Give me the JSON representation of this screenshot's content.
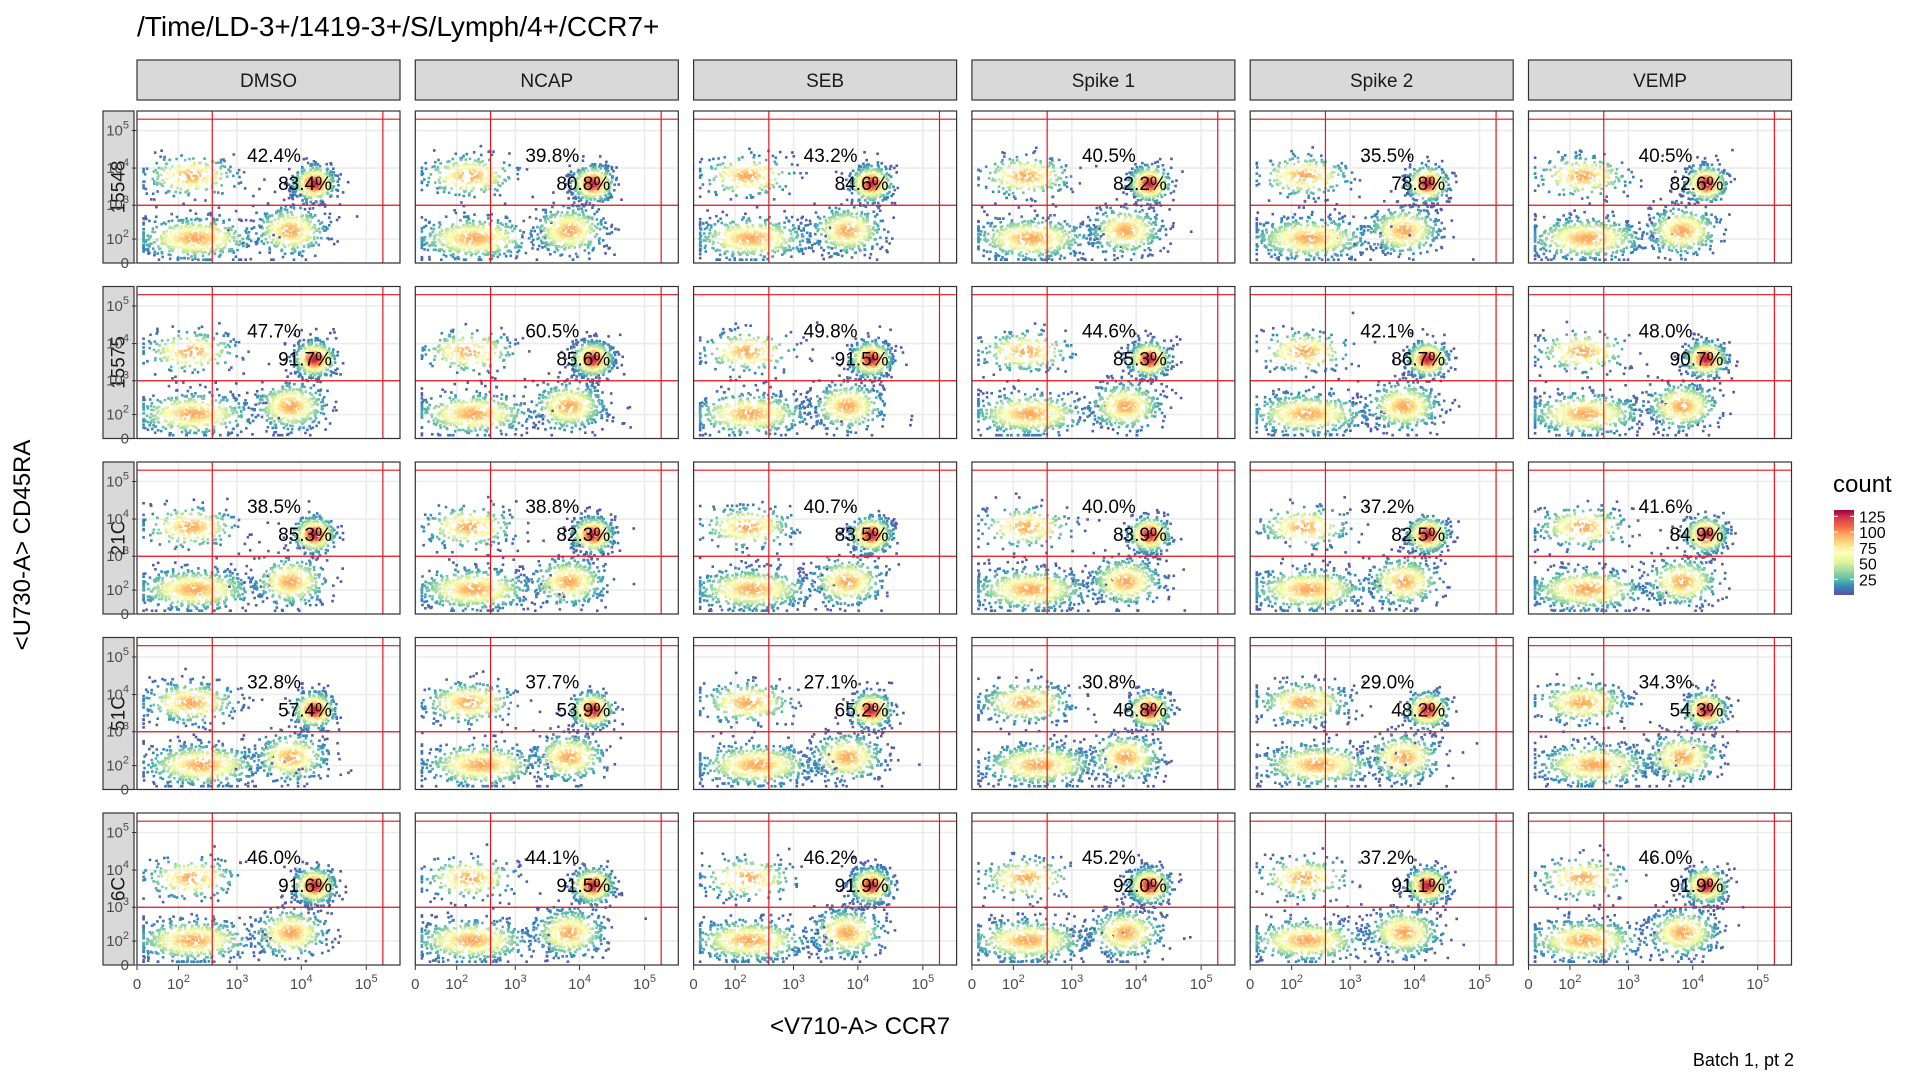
{
  "chart_data": {
    "type": "heatmap",
    "subtype": "faceted 2D density (flow cytometry)",
    "title": "/Time/LD-3+/1419-3+/S/Lymph/4+/CCR7+",
    "xlabel": "<V710-A> CCR7",
    "ylabel": "<U730-A> CD45RA",
    "caption": "Batch 1, pt 2",
    "x_ticks": [
      {
        "sup": null,
        "label": "0",
        "value": 0
      },
      {
        "sup": "2",
        "label": "10",
        "value": 100
      },
      {
        "sup": "3",
        "label": "10",
        "value": 1000
      },
      {
        "sup": "4",
        "label": "10",
        "value": 10000
      },
      {
        "sup": "5",
        "label": "10",
        "value": 100000
      }
    ],
    "y_ticks": [
      {
        "sup": null,
        "label": "0",
        "value": 0
      },
      {
        "sup": "2",
        "label": "10",
        "value": 100
      },
      {
        "sup": "3",
        "label": "10",
        "value": 1000
      },
      {
        "sup": "4",
        "label": "10",
        "value": 10000
      },
      {
        "sup": "5",
        "label": "10",
        "value": 100000
      }
    ],
    "columns": [
      "DMSO",
      "NCAP",
      "SEB",
      "Spike 1",
      "Spike 2",
      "VEMP"
    ],
    "rows": [
      "15548",
      "15575",
      "21C",
      "51C",
      "6C"
    ],
    "gates": {
      "x": [
        400,
        180000
      ],
      "y": [
        1000,
        200000
      ]
    },
    "legend": {
      "title": "count",
      "ticks": [
        "25",
        "50",
        "75",
        "100",
        "125"
      ],
      "colors": [
        "#5E4FA2",
        "#3288BD",
        "#66C2A5",
        "#ABDDA4",
        "#E6F598",
        "#FFFFBF",
        "#FEE08B",
        "#FDAE61",
        "#F46D43",
        "#D53E4F",
        "#9E0142"
      ]
    },
    "colors": {
      "gate": "#e8141d",
      "panel_border": "#333333",
      "strip_fill": "#d9d9d9",
      "grid": "#ebebeb"
    },
    "panels": [
      {
        "row": "15548",
        "col": "DMSO",
        "upper_pct": "42.4%",
        "lower_pct": "83.4%"
      },
      {
        "row": "15548",
        "col": "NCAP",
        "upper_pct": "39.8%",
        "lower_pct": "80.8%"
      },
      {
        "row": "15548",
        "col": "SEB",
        "upper_pct": "43.2%",
        "lower_pct": "84.6%"
      },
      {
        "row": "15548",
        "col": "Spike 1",
        "upper_pct": "40.5%",
        "lower_pct": "82.2%"
      },
      {
        "row": "15548",
        "col": "Spike 2",
        "upper_pct": "35.5%",
        "lower_pct": "78.8%"
      },
      {
        "row": "15548",
        "col": "VEMP",
        "upper_pct": "40.5%",
        "lower_pct": "82.6%"
      },
      {
        "row": "15575",
        "col": "DMSO",
        "upper_pct": "47.7%",
        "lower_pct": "91.7%"
      },
      {
        "row": "15575",
        "col": "NCAP",
        "upper_pct": "60.5%",
        "lower_pct": "85.6%"
      },
      {
        "row": "15575",
        "col": "SEB",
        "upper_pct": "49.8%",
        "lower_pct": "91.5%"
      },
      {
        "row": "15575",
        "col": "Spike 1",
        "upper_pct": "44.6%",
        "lower_pct": "85.3%"
      },
      {
        "row": "15575",
        "col": "Spike 2",
        "upper_pct": "42.1%",
        "lower_pct": "86.7%"
      },
      {
        "row": "15575",
        "col": "VEMP",
        "upper_pct": "48.0%",
        "lower_pct": "90.7%"
      },
      {
        "row": "21C",
        "col": "DMSO",
        "upper_pct": "38.5%",
        "lower_pct": "85.3%"
      },
      {
        "row": "21C",
        "col": "NCAP",
        "upper_pct": "38.8%",
        "lower_pct": "82.3%"
      },
      {
        "row": "21C",
        "col": "SEB",
        "upper_pct": "40.7%",
        "lower_pct": "83.5%"
      },
      {
        "row": "21C",
        "col": "Spike 1",
        "upper_pct": "40.0%",
        "lower_pct": "83.9%"
      },
      {
        "row": "21C",
        "col": "Spike 2",
        "upper_pct": "37.2%",
        "lower_pct": "82.5%"
      },
      {
        "row": "21C",
        "col": "VEMP",
        "upper_pct": "41.6%",
        "lower_pct": "84.9%"
      },
      {
        "row": "51C",
        "col": "DMSO",
        "upper_pct": "32.8%",
        "lower_pct": "57.4%"
      },
      {
        "row": "51C",
        "col": "NCAP",
        "upper_pct": "37.7%",
        "lower_pct": "53.9%"
      },
      {
        "row": "51C",
        "col": "SEB",
        "upper_pct": "27.1%",
        "lower_pct": "65.2%"
      },
      {
        "row": "51C",
        "col": "Spike 1",
        "upper_pct": "30.8%",
        "lower_pct": "48.8%"
      },
      {
        "row": "51C",
        "col": "Spike 2",
        "upper_pct": "29.0%",
        "lower_pct": "48.2%"
      },
      {
        "row": "51C",
        "col": "VEMP",
        "upper_pct": "34.3%",
        "lower_pct": "54.3%"
      },
      {
        "row": "6C",
        "col": "DMSO",
        "upper_pct": "46.0%",
        "lower_pct": "91.6%"
      },
      {
        "row": "6C",
        "col": "NCAP",
        "upper_pct": "44.1%",
        "lower_pct": "91.5%"
      },
      {
        "row": "6C",
        "col": "SEB",
        "upper_pct": "46.2%",
        "lower_pct": "91.9%"
      },
      {
        "row": "6C",
        "col": "Spike 1",
        "upper_pct": "45.2%",
        "lower_pct": "92.0%"
      },
      {
        "row": "6C",
        "col": "Spike 2",
        "upper_pct": "37.2%",
        "lower_pct": "91.1%"
      },
      {
        "row": "6C",
        "col": "VEMP",
        "upper_pct": "46.0%",
        "lower_pct": "91.9%"
      }
    ]
  }
}
